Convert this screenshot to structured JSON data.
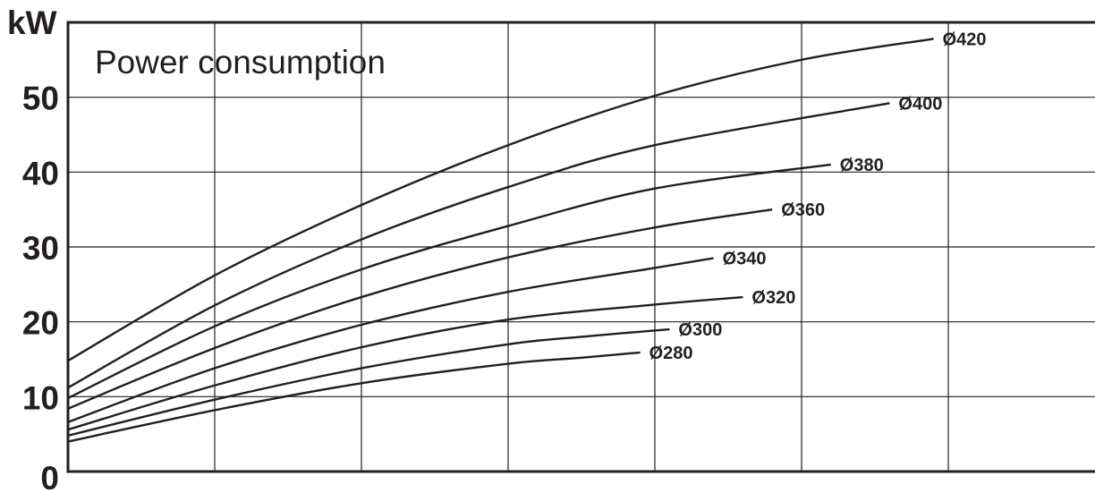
{
  "chart_data": {
    "type": "line",
    "title": "Power consumption",
    "xlabel": "",
    "ylabel": "kW",
    "y_ticks": [
      "0",
      "10",
      "20",
      "30",
      "40",
      "50"
    ],
    "ylim": [
      0,
      60
    ],
    "xlim": [
      0,
      7
    ],
    "x_tick_labels_shown": false,
    "grid": true,
    "legend": "inline labels at curve ends",
    "line_color": "#231f20",
    "series": [
      {
        "name": "Ø280",
        "x": [
          0,
          1,
          2,
          3,
          3.5,
          3.9
        ],
        "y": [
          4.0,
          8.2,
          11.8,
          14.4,
          15.2,
          15.9
        ]
      },
      {
        "name": "Ø300",
        "x": [
          0,
          1,
          2,
          3,
          3.5,
          4.1
        ],
        "y": [
          4.8,
          9.6,
          13.8,
          17.0,
          18.0,
          19.0
        ]
      },
      {
        "name": "Ø320",
        "x": [
          0,
          1,
          2,
          3,
          4,
          4.6
        ],
        "y": [
          5.6,
          11.5,
          16.6,
          20.3,
          22.3,
          23.3
        ]
      },
      {
        "name": "Ø340",
        "x": [
          0,
          1,
          2,
          3,
          4,
          4.4
        ],
        "y": [
          6.6,
          13.8,
          19.6,
          24.0,
          27.2,
          28.5
        ]
      },
      {
        "name": "Ø360",
        "x": [
          0,
          1,
          2,
          3,
          4,
          4.8
        ],
        "y": [
          8.4,
          16.5,
          23.3,
          28.6,
          32.6,
          35.0
        ]
      },
      {
        "name": "Ø380",
        "x": [
          0,
          1,
          2,
          3,
          4,
          5.2
        ],
        "y": [
          9.8,
          19.4,
          27.0,
          32.8,
          37.8,
          41.0
        ]
      },
      {
        "name": "Ø400",
        "x": [
          0,
          1,
          2,
          3,
          4,
          5.6
        ],
        "y": [
          11.2,
          22.2,
          31.0,
          38.0,
          43.6,
          49.2
        ]
      },
      {
        "name": "Ø420",
        "x": [
          0,
          1,
          2,
          3,
          4,
          5,
          5.9
        ],
        "y": [
          14.8,
          26.2,
          35.6,
          43.6,
          50.2,
          55.0,
          57.8
        ]
      }
    ]
  }
}
